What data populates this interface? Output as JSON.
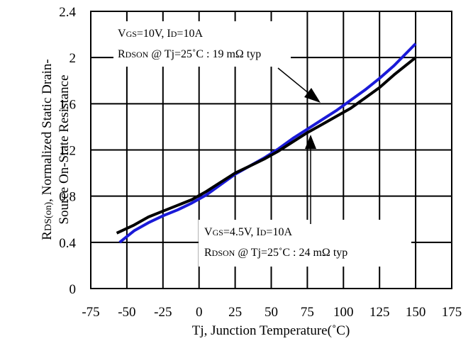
{
  "chart_data": {
    "type": "line",
    "xlabel": "Tj, Junction Temperature(˚C)",
    "ylabel": {
      "line1_parts": [
        "R",
        "DS(on)",
        ", Normalized Static Drain-"
      ],
      "line2": "Source On-State Resistance"
    },
    "xlim": [
      -75,
      175
    ],
    "ylim": [
      0,
      2.4
    ],
    "x_ticks": [
      -75,
      -50,
      -25,
      0,
      25,
      50,
      75,
      100,
      125,
      150,
      175
    ],
    "y_ticks": [
      "0",
      "0.4",
      "0.8",
      "1.2",
      "1.6",
      "2",
      "2.4"
    ],
    "grid": true,
    "series": [
      {
        "color": "#1a1ad8",
        "x": [
          -55,
          -45,
          -35,
          -25,
          -15,
          -5,
          5,
          15,
          25,
          35,
          45,
          55,
          65,
          75,
          85,
          95,
          105,
          115,
          125,
          135,
          150
        ],
        "y": [
          0.4,
          0.5,
          0.57,
          0.63,
          0.68,
          0.74,
          0.81,
          0.9,
          0.99,
          1.06,
          1.13,
          1.21,
          1.3,
          1.38,
          1.46,
          1.54,
          1.63,
          1.72,
          1.82,
          1.93,
          2.12
        ]
      },
      {
        "color": "#000000",
        "x": [
          -57,
          -45,
          -35,
          -25,
          -15,
          -5,
          5,
          15,
          25,
          35,
          45,
          55,
          65,
          75,
          85,
          95,
          105,
          115,
          125,
          135,
          150
        ],
        "y": [
          0.48,
          0.55,
          0.62,
          0.67,
          0.72,
          0.77,
          0.84,
          0.92,
          1.0,
          1.06,
          1.12,
          1.19,
          1.27,
          1.35,
          1.42,
          1.49,
          1.56,
          1.65,
          1.74,
          1.85,
          2.0
        ]
      }
    ],
    "annotations": [
      {
        "cond": [
          [
            "V",
            "GS",
            "=10V,  I",
            "D",
            "=10A"
          ]
        ],
        "rdson": [
          "R",
          "DSON",
          " @ Tj=25˚C : 19 mΩ typ"
        ]
      },
      {
        "cond": [
          [
            "V",
            "GS",
            "=4.5V,  I",
            "D",
            "=10A"
          ]
        ],
        "rdson": [
          "R",
          "DSON",
          " @ Tj=25˚C : 24 mΩ typ"
        ]
      }
    ]
  }
}
